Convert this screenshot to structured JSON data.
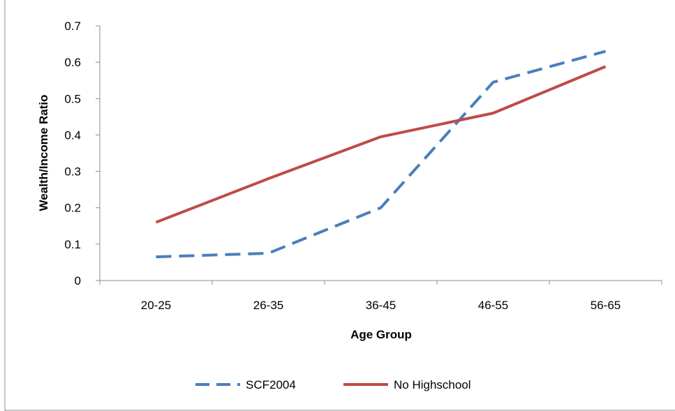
{
  "chart_data": {
    "type": "line",
    "title": "",
    "xlabel": "Age Group",
    "ylabel": "Wealth/Income Ratio",
    "categories": [
      "20-25",
      "26-35",
      "36-45",
      "46-55",
      "56-65"
    ],
    "ylim": [
      0,
      0.7
    ],
    "yticks": [
      "0",
      "0.1",
      "0.2",
      "0.3",
      "0.4",
      "0.5",
      "0.6",
      "0.7"
    ],
    "grid": false,
    "legend_position": "bottom",
    "series": [
      {
        "name": "SCF2004",
        "values": [
          0.065,
          0.075,
          0.2,
          0.545,
          0.63
        ],
        "color": "#4a7ebb",
        "style": "dashed"
      },
      {
        "name": "No Highschool",
        "values": [
          0.16,
          0.28,
          0.395,
          0.46,
          0.588
        ],
        "color": "#be4b48",
        "style": "solid"
      }
    ]
  }
}
